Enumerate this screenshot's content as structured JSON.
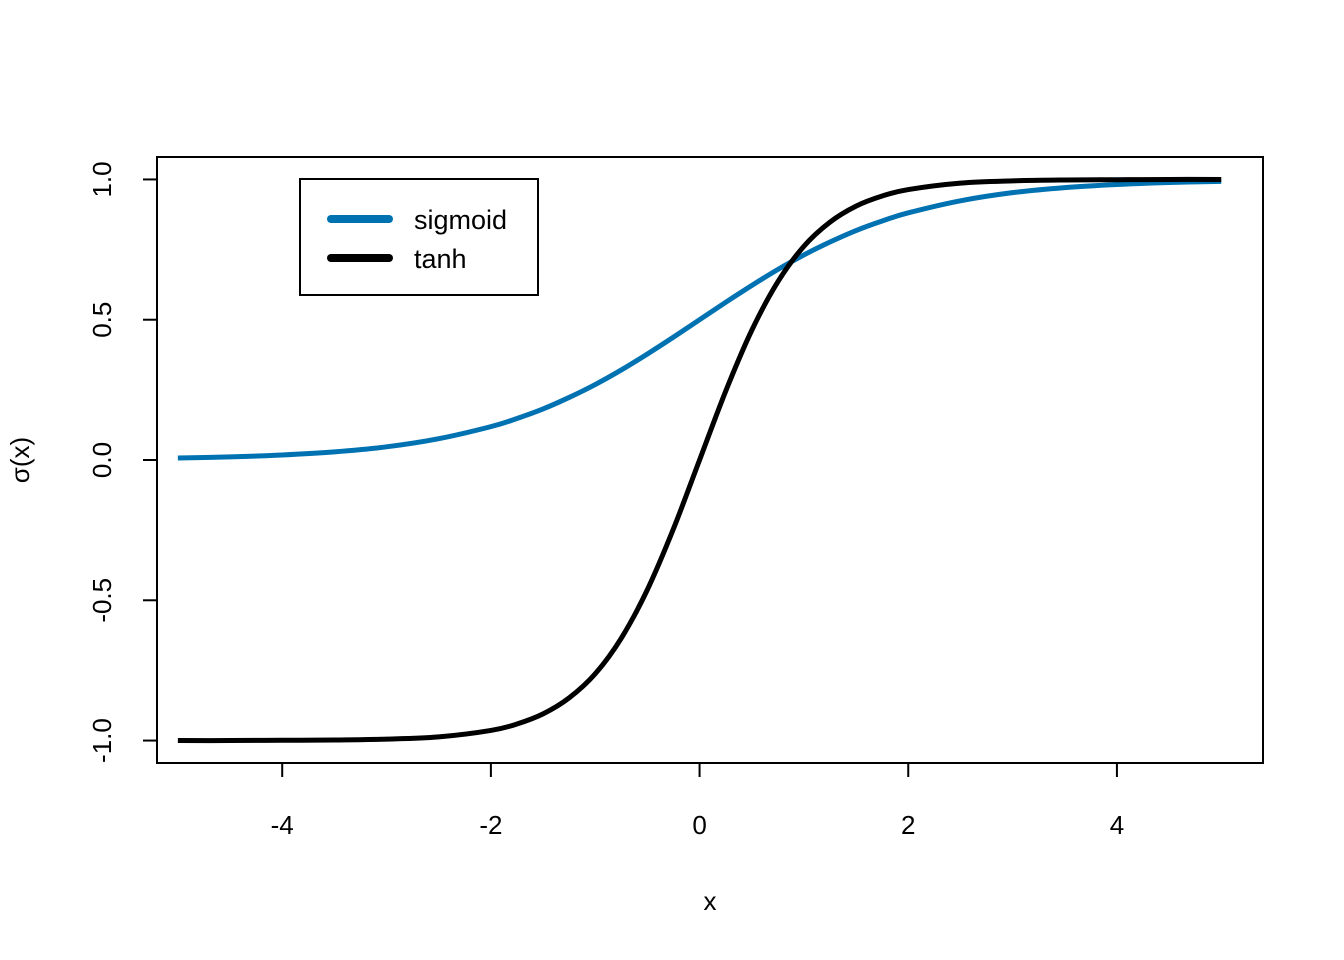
{
  "chart_data": {
    "type": "line",
    "title": "",
    "xlabel": "x",
    "ylabel": "σ(x)",
    "xlim": [
      -5.2,
      5.4
    ],
    "ylim": [
      -1.08,
      1.08
    ],
    "x_ticks": [
      -4,
      -2,
      0,
      2,
      4
    ],
    "x_tick_labels": [
      "-4",
      "-2",
      "0",
      "2",
      "4"
    ],
    "y_ticks": [
      -1.0,
      -0.5,
      0.0,
      0.5,
      1.0
    ],
    "y_tick_labels": [
      "-1.0",
      "-0.5",
      "0.0",
      "0.5",
      "1.0"
    ],
    "grid": false,
    "legend": {
      "placement": "top-left",
      "entries": [
        "sigmoid",
        "tanh"
      ]
    },
    "x": [
      -5,
      -4.5,
      -4,
      -3.5,
      -3,
      -2.5,
      -2,
      -1.75,
      -1.5,
      -1.25,
      -1,
      -0.75,
      -0.5,
      -0.25,
      0,
      0.25,
      0.5,
      0.75,
      1,
      1.25,
      1.5,
      1.75,
      2,
      2.5,
      3,
      3.5,
      4,
      4.5,
      5
    ],
    "series": [
      {
        "name": "sigmoid",
        "color": "#0072B2",
        "values": [
          0.007,
          0.011,
          0.018,
          0.029,
          0.047,
          0.076,
          0.119,
          0.148,
          0.182,
          0.223,
          0.269,
          0.321,
          0.378,
          0.438,
          0.5,
          0.562,
          0.622,
          0.679,
          0.731,
          0.777,
          0.818,
          0.852,
          0.881,
          0.924,
          0.953,
          0.971,
          0.982,
          0.989,
          0.993
        ]
      },
      {
        "name": "tanh",
        "color": "#000000",
        "values": [
          -1.0,
          -1.0,
          -0.999,
          -0.998,
          -0.995,
          -0.987,
          -0.964,
          -0.941,
          -0.905,
          -0.848,
          -0.762,
          -0.635,
          -0.462,
          -0.245,
          0.0,
          0.245,
          0.462,
          0.635,
          0.762,
          0.848,
          0.905,
          0.941,
          0.964,
          0.987,
          0.995,
          0.998,
          0.999,
          1.0,
          1.0
        ]
      }
    ]
  }
}
